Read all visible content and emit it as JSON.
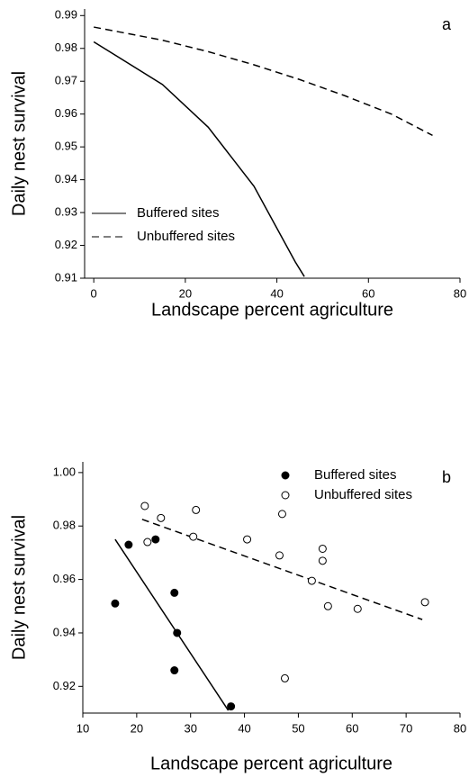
{
  "chart_data": [
    {
      "type": "line",
      "panel_label": "a",
      "x_label": "Landscape percent agriculture",
      "y_label": "Daily nest survival",
      "xlim": [
        -2,
        80
      ],
      "xticks": [
        0,
        20,
        40,
        60,
        80
      ],
      "ylim": [
        0.91,
        0.992
      ],
      "yticks": [
        0.91,
        0.92,
        0.93,
        0.94,
        0.95,
        0.96,
        0.97,
        0.98,
        0.99
      ],
      "legend": "lower left",
      "series": [
        {
          "name": "Buffered sites",
          "style": "solid",
          "color": "#000000",
          "x": [
            0,
            15,
            25,
            35,
            44,
            46
          ],
          "values": [
            0.982,
            0.969,
            0.956,
            0.938,
            0.915,
            0.9105
          ]
        },
        {
          "name": "Unbuffered sites",
          "style": "dashed",
          "color": "#000000",
          "x": [
            0,
            15,
            25,
            35,
            45,
            55,
            65,
            74
          ],
          "values": [
            0.9865,
            0.9825,
            0.979,
            0.975,
            0.9705,
            0.9655,
            0.96,
            0.9535
          ]
        }
      ]
    },
    {
      "type": "scatter",
      "panel_label": "b",
      "x_label": "Landscape percent agriculture",
      "y_label": "Daily nest survival",
      "xlim": [
        10,
        80
      ],
      "xticks": [
        10,
        20,
        30,
        40,
        50,
        60,
        70,
        80
      ],
      "ylim": [
        0.91,
        1.004
      ],
      "yticks": [
        {
          "value": 0.92,
          "label": "0.92"
        },
        {
          "value": 0.94,
          "label": "0.94"
        },
        {
          "value": 0.96,
          "label": "0.96"
        },
        {
          "value": 0.98,
          "label": "0.98"
        },
        {
          "value": 1.0,
          "label": "1.00"
        }
      ],
      "legend": "upper right",
      "series": [
        {
          "name": "Buffered sites",
          "marker": "filled",
          "color": "#000000",
          "line_style": "solid",
          "x": [
            16,
            18.5,
            23.5,
            27,
            27.5,
            27,
            37.5
          ],
          "values": [
            0.951,
            0.973,
            0.975,
            0.955,
            0.94,
            0.926,
            0.9125
          ],
          "fit": {
            "x": [
              16,
              37
            ],
            "values": [
              0.975,
              0.911
            ]
          }
        },
        {
          "name": "Unbuffered sites",
          "marker": "open",
          "color": "#000000",
          "line_style": "dashed",
          "x": [
            21.5,
            22,
            24.5,
            30.5,
            31,
            40.5,
            46.5,
            47,
            47.5,
            52.5,
            54.5,
            54.5,
            55.5,
            61,
            73.5
          ],
          "values": [
            0.9875,
            0.974,
            0.983,
            0.976,
            0.986,
            0.975,
            0.969,
            0.9845,
            0.923,
            0.9595,
            0.9715,
            0.967,
            0.95,
            0.949,
            0.9515
          ],
          "fit": {
            "x": [
              21,
              73
            ],
            "values": [
              0.9825,
              0.945
            ]
          }
        }
      ]
    }
  ]
}
